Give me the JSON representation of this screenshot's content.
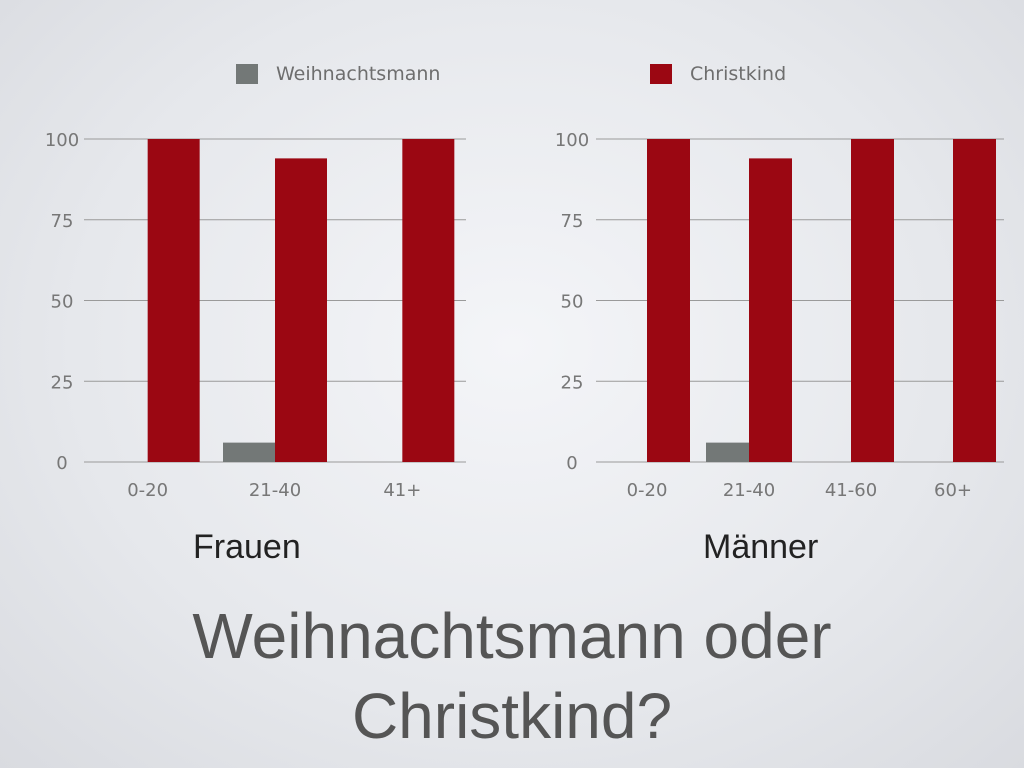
{
  "legend": {
    "weihnachtsmann": {
      "label": "Weihnachtsmann",
      "color": "#737877"
    },
    "christkind": {
      "label": "Christkind",
      "color": "#9b0712"
    }
  },
  "captions": {
    "left": "Frauen",
    "right": "Männer"
  },
  "title": {
    "line1": "Weihnachtsmann oder",
    "line2": "Christkind?"
  },
  "chart_data": [
    {
      "type": "bar",
      "categories": [
        "0-20",
        "21-40",
        "41+"
      ],
      "series": [
        {
          "name": "Weihnachtsmann",
          "values": [
            0,
            6,
            0
          ]
        },
        {
          "name": "Christkind",
          "values": [
            100,
            94,
            100
          ]
        }
      ],
      "yticks": [
        "0",
        "25",
        "50",
        "75",
        "100"
      ],
      "ylim": [
        0,
        100
      ],
      "grid": true,
      "xlabel": "Frauen"
    },
    {
      "type": "bar",
      "categories": [
        "0-20",
        "21-40",
        "41-60",
        "60+"
      ],
      "series": [
        {
          "name": "Weihnachtsmann",
          "values": [
            0,
            6,
            0,
            0
          ]
        },
        {
          "name": "Christkind",
          "values": [
            100,
            94,
            100,
            100
          ]
        }
      ],
      "yticks": [
        "0",
        "25",
        "50",
        "75",
        "100"
      ],
      "ylim": [
        0,
        100
      ],
      "grid": true,
      "xlabel": "Männer"
    }
  ]
}
